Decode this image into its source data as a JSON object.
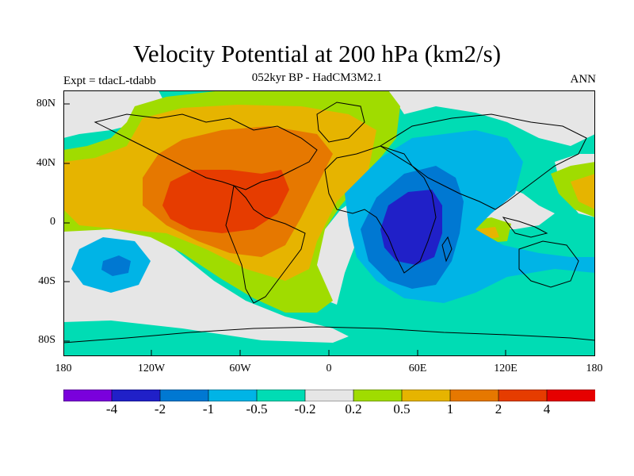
{
  "title": "Velocity Potential at 200 hPa (km2/s)",
  "subtitle": "052kyr BP - HadCM3M2.1",
  "experiment_label": "Expt = tdacL-tdabb",
  "season_label": "ANN",
  "chart_data": {
    "type": "map-contour",
    "variable": "Velocity Potential at 200 hPa",
    "units": "km2/s",
    "projection": "cylindrical equidistant",
    "xlim": [
      -180,
      180
    ],
    "ylim": [
      -90,
      90
    ],
    "x_ticks": [
      "180",
      "120W",
      "60W",
      "0",
      "60E",
      "120E",
      "180"
    ],
    "y_ticks": [
      "80N",
      "40N",
      "0",
      "40S",
      "80S"
    ],
    "colorbar_levels": [
      "-4",
      "-2",
      "-1",
      "-0.5",
      "-0.2",
      "0.2",
      "0.5",
      "1",
      "2",
      "4"
    ],
    "colorbar_colors": [
      "#7a00dc",
      "#2020c8",
      "#0078d2",
      "#00b4e6",
      "#00dcb4",
      "#e6e6e6",
      "#a0dc00",
      "#e6b400",
      "#e67800",
      "#e63c00",
      "#e60000"
    ],
    "features": [
      {
        "region": "tropical America / Atlantic",
        "value_range": "2 to 4"
      },
      {
        "region": "Indian Ocean / East Africa",
        "value_range": "-4 to -2"
      }
    ]
  }
}
